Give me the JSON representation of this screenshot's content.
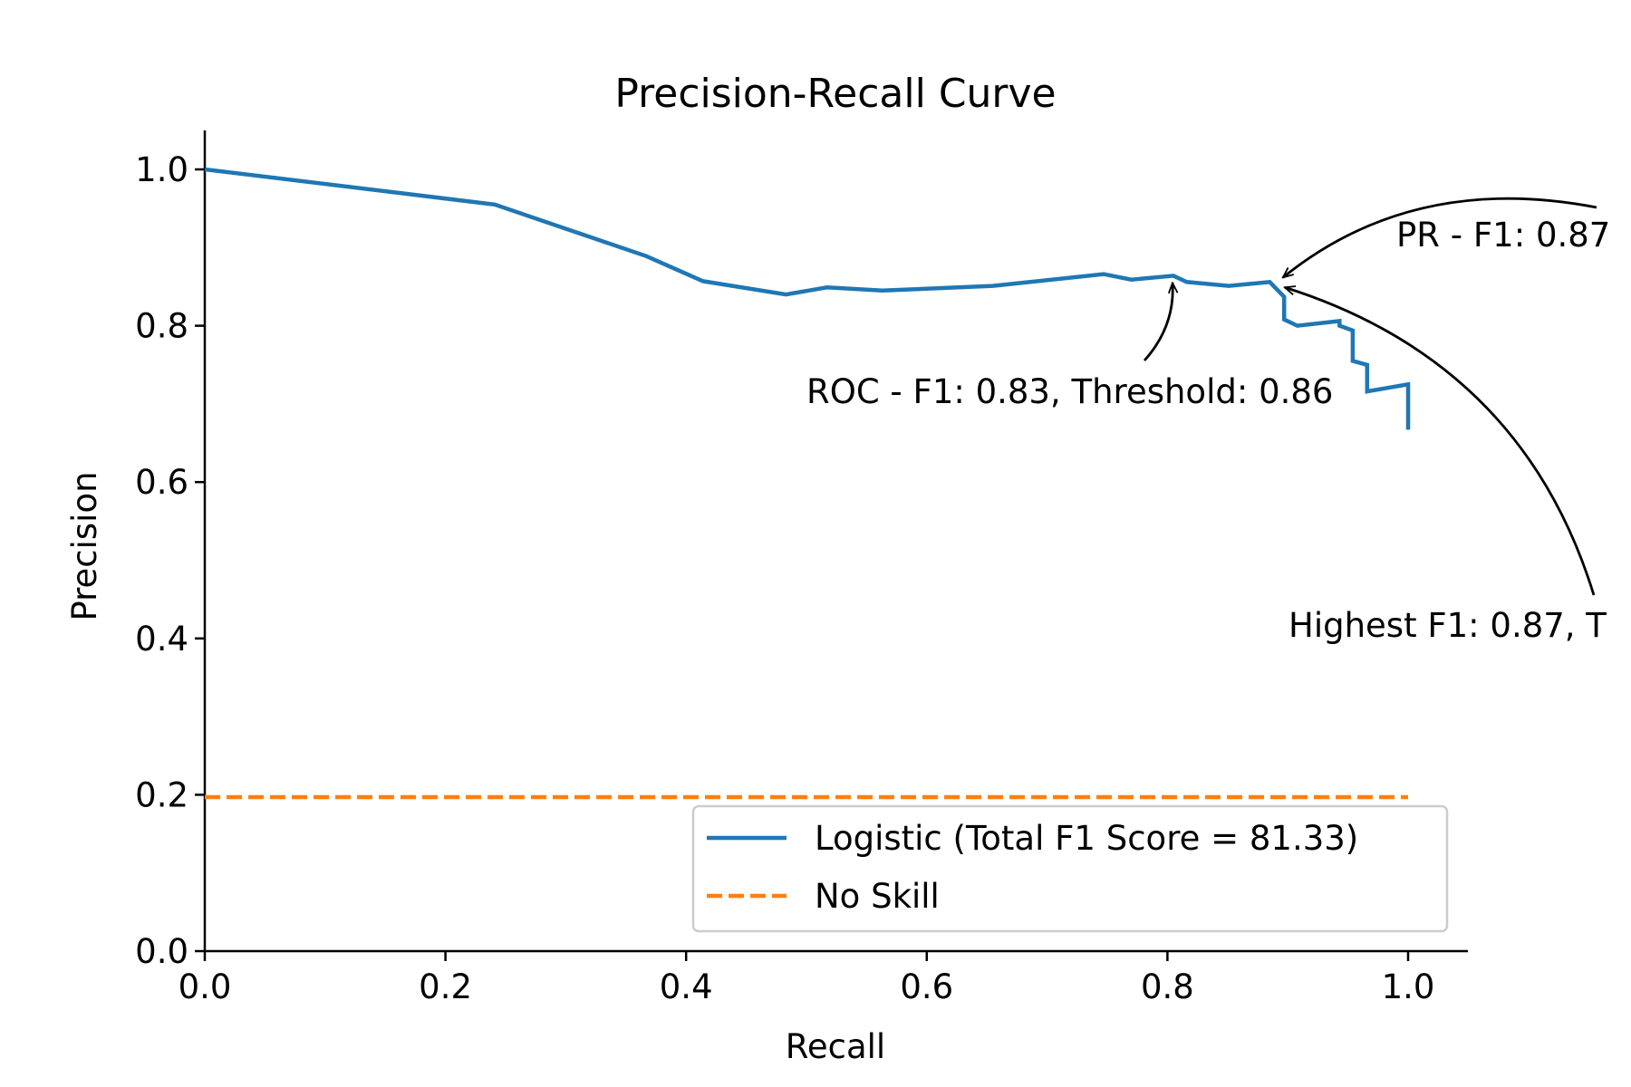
{
  "chart_data": {
    "type": "line",
    "title": "Precision-Recall Curve",
    "xlabel": "Recall",
    "ylabel": "Precision",
    "xlim": [
      0.0,
      1.05
    ],
    "ylim": [
      0.0,
      1.05
    ],
    "xticks": [
      "0.0",
      "0.2",
      "0.4",
      "0.6",
      "0.8",
      "1.0"
    ],
    "yticks": [
      "0.0",
      "0.2",
      "0.4",
      "0.6",
      "0.8",
      "1.0"
    ],
    "grid": false,
    "legend_position": "lower-right",
    "series": [
      {
        "name": "Logistic (Total F1 Score = 81.33)",
        "color": "#1f77b4",
        "style": "solid",
        "x": [
          0.0,
          0.241,
          0.367,
          0.414,
          0.483,
          0.517,
          0.563,
          0.655,
          0.747,
          0.77,
          0.805,
          0.816,
          0.851,
          0.885,
          0.897,
          0.897,
          0.908,
          0.943,
          0.943,
          0.954,
          0.954,
          0.966,
          0.966,
          1.0,
          1.0
        ],
        "y": [
          1.0,
          0.955,
          0.889,
          0.857,
          0.84,
          0.849,
          0.845,
          0.851,
          0.866,
          0.859,
          0.864,
          0.856,
          0.851,
          0.856,
          0.837,
          0.808,
          0.8,
          0.806,
          0.8,
          0.794,
          0.755,
          0.75,
          0.716,
          0.725,
          0.667
        ]
      },
      {
        "name": "No Skill",
        "color": "#ff7f0e",
        "style": "dashed",
        "x": [
          0.0,
          1.0
        ],
        "y": [
          0.197,
          0.197
        ]
      }
    ],
    "annotations": [
      {
        "text": "ROC - F1: 0.83, Threshold: 0.86",
        "point": [
          0.805,
          0.864
        ],
        "text_pos": [
          0.5,
          0.71
        ],
        "arrow_curve": "gentle"
      },
      {
        "text": "PR - F1: 0.87",
        "point": [
          0.89,
          0.856
        ],
        "text_pos": [
          1.04,
          0.905
        ],
        "arrow_curve": "arc"
      },
      {
        "text": "Highest F1: 0.87, T",
        "point": [
          0.89,
          0.856
        ],
        "text_pos": [
          0.9,
          0.405
        ],
        "arrow_curve": "arc"
      }
    ]
  }
}
